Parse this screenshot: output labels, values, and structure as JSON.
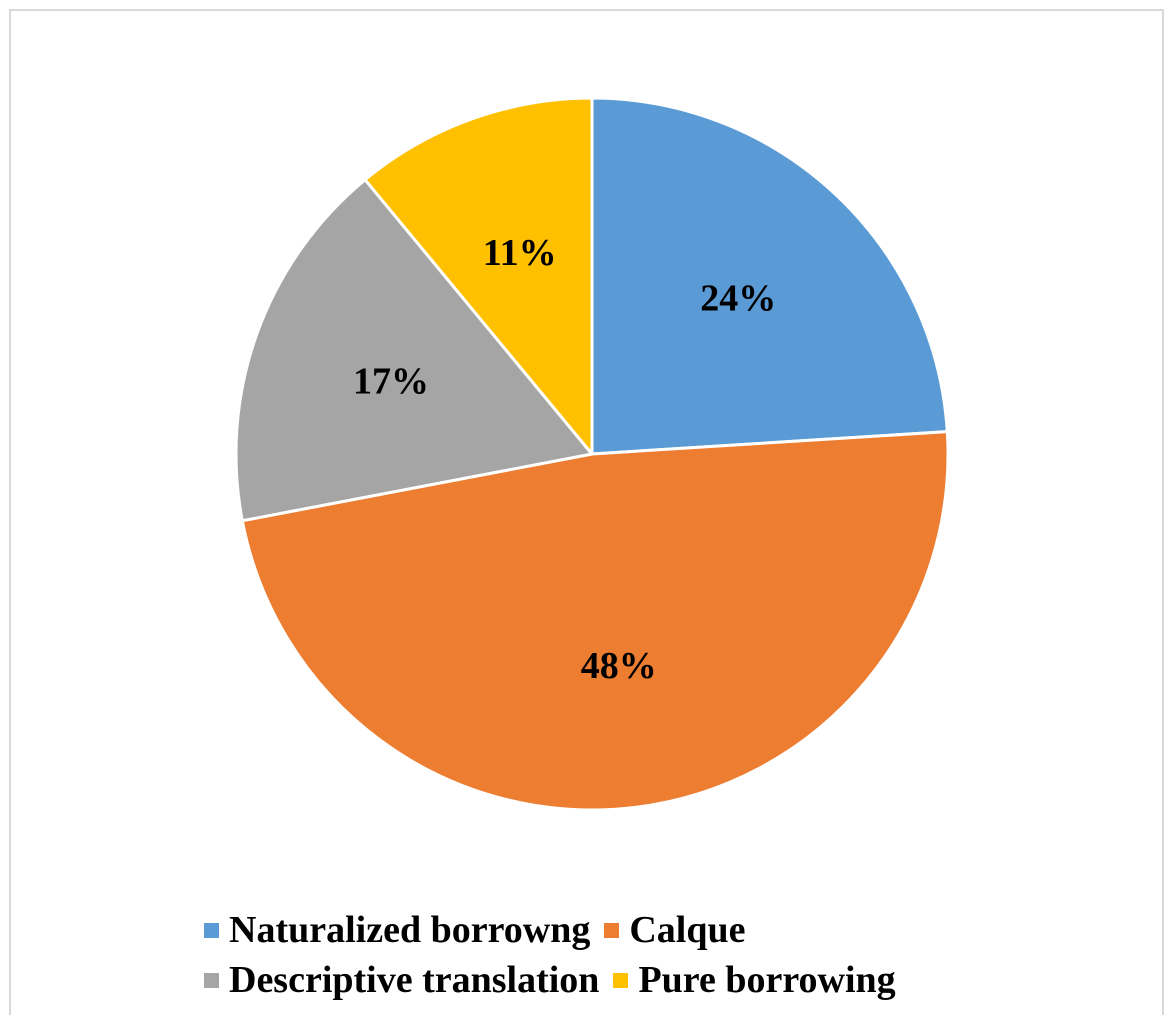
{
  "chart_data": {
    "type": "pie",
    "title": "",
    "categories": [
      "Naturalized borrowng",
      "Calque",
      "Descriptive translation",
      "Pure borrowing"
    ],
    "values": [
      24,
      48,
      17,
      11
    ],
    "labels": [
      "24%",
      "48%",
      "17%",
      "11%"
    ],
    "colors": [
      "#5b9bd5",
      "#ed7d31",
      "#a5a5a5",
      "#ffc000"
    ],
    "start_angle": "12 o'clock",
    "direction": "clockwise",
    "legend_position": "bottom"
  }
}
